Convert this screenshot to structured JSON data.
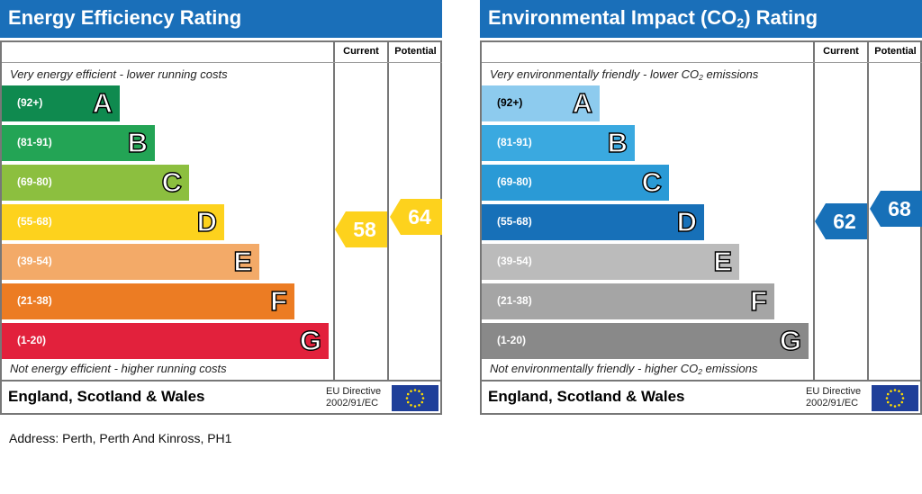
{
  "energy": {
    "title": "Energy Efficiency Rating",
    "col_current": "Current",
    "col_potential": "Potential",
    "top_note": "Very energy efficient - lower running costs",
    "bottom_note": "Not energy efficient - higher running costs",
    "region": "England, Scotland & Wales",
    "eu_line1": "EU Directive",
    "eu_line2": "2002/91/EC",
    "bands": [
      {
        "range": "(92+)",
        "letter": "A",
        "color": "#0f8a4f"
      },
      {
        "range": "(81-91)",
        "letter": "B",
        "color": "#23a455"
      },
      {
        "range": "(69-80)",
        "letter": "C",
        "color": "#8cbf3f"
      },
      {
        "range": "(55-68)",
        "letter": "D",
        "color": "#fdd21d"
      },
      {
        "range": "(39-54)",
        "letter": "E",
        "color": "#f3aa68"
      },
      {
        "range": "(21-38)",
        "letter": "F",
        "color": "#ec7c23"
      },
      {
        "range": "(1-20)",
        "letter": "G",
        "color": "#e2213c"
      }
    ],
    "current": "58",
    "potential": "64",
    "arrow_color": "#fdd21d"
  },
  "environment": {
    "title_pre": "Environmental Impact (CO",
    "title_sub": "2",
    "title_post": ") Rating",
    "col_current": "Current",
    "col_potential": "Potential",
    "top_note_pre": "Very environmentally friendly - lower CO",
    "top_note_sub": "2",
    "top_note_post": " emissions",
    "bottom_note_pre": "Not environmentally friendly - higher CO",
    "bottom_note_sub": "2",
    "bottom_note_post": " emissions",
    "region": "England, Scotland & Wales",
    "eu_line1": "EU Directive",
    "eu_line2": "2002/91/EC",
    "bands": [
      {
        "range": "(92+)",
        "letter": "A",
        "color": "#8dcbee"
      },
      {
        "range": "(81-91)",
        "letter": "B",
        "color": "#3aa9e0"
      },
      {
        "range": "(69-80)",
        "letter": "C",
        "color": "#2a9ad6"
      },
      {
        "range": "(55-68)",
        "letter": "D",
        "color": "#1770b8"
      },
      {
        "range": "(39-54)",
        "letter": "E",
        "color": "#bbbbbb"
      },
      {
        "range": "(21-38)",
        "letter": "F",
        "color": "#a5a5a5"
      },
      {
        "range": "(1-20)",
        "letter": "G",
        "color": "#898989"
      }
    ],
    "current": "62",
    "potential": "68",
    "arrow_color": "#1770b8"
  },
  "address": "Address: Perth, Perth And Kinross, PH1",
  "chart_data": [
    {
      "type": "bar",
      "title": "Energy Efficiency Rating",
      "categories": [
        "A",
        "B",
        "C",
        "D",
        "E",
        "F",
        "G"
      ],
      "ranges": [
        "(92+)",
        "(81-91)",
        "(69-80)",
        "(55-68)",
        "(39-54)",
        "(21-38)",
        "(1-20)"
      ],
      "current": 58,
      "potential": 64
    },
    {
      "type": "bar",
      "title": "Environmental Impact (CO2) Rating",
      "categories": [
        "A",
        "B",
        "C",
        "D",
        "E",
        "F",
        "G"
      ],
      "ranges": [
        "(92+)",
        "(81-91)",
        "(69-80)",
        "(55-68)",
        "(39-54)",
        "(21-38)",
        "(1-20)"
      ],
      "current": 62,
      "potential": 68
    }
  ]
}
